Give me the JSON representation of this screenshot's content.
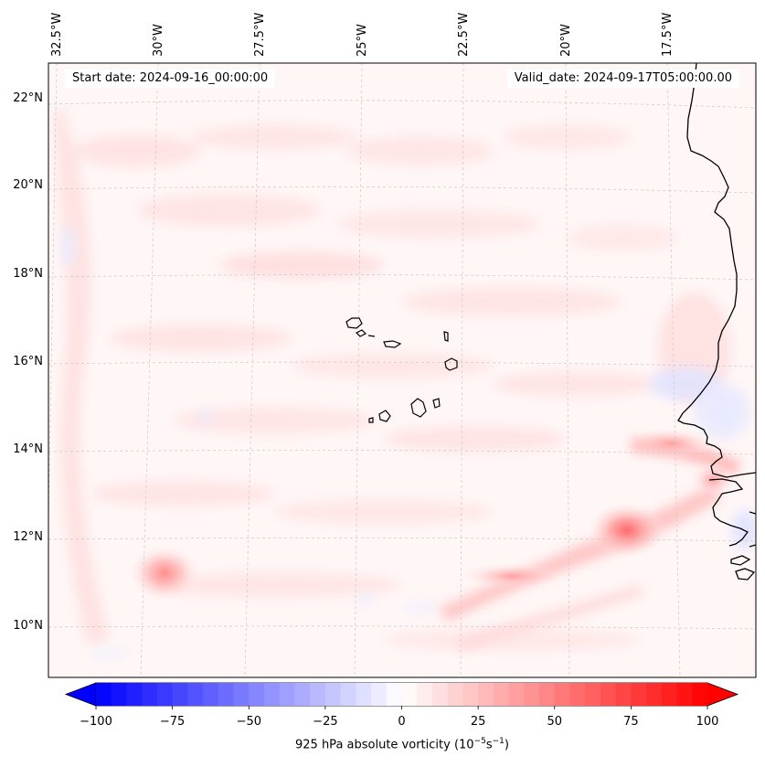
{
  "map": {
    "start_date": "Start date: 2024-09-16_00:00:00",
    "valid_date": "Valid_date: 2024-09-17T05:00:00.00",
    "lon_labels": [
      "32.5°W",
      "30°W",
      "27.5°W",
      "25°W",
      "22.5°W",
      "20°W",
      "17.5°W"
    ],
    "lat_labels": [
      "22°N",
      "20°N",
      "18°N",
      "16°N",
      "14°N",
      "12°N",
      "10°N"
    ],
    "variable": "925 hPa absolute vorticity",
    "units_base": "10",
    "units_exp1": "−5",
    "units_mid": "s",
    "units_exp2": "−1",
    "colors": {
      "negative": "#0000ff",
      "neutral": "#ffffff",
      "positive": "#ff0000",
      "coast": "#000000",
      "grid": "#c8c8c8"
    }
  },
  "colorbar": {
    "range": [
      -100,
      100
    ],
    "step": 5,
    "ticks": [
      "−100",
      "−75",
      "−50",
      "−25",
      "0",
      "25",
      "50",
      "75",
      "100"
    ]
  },
  "vorticity_features": [
    {
      "name": "vortex-near-11N-29W",
      "value": 45
    },
    {
      "name": "vortex-near-12N-18W",
      "value": 60
    },
    {
      "name": "band-near-14N-17W",
      "value": 35
    }
  ]
}
